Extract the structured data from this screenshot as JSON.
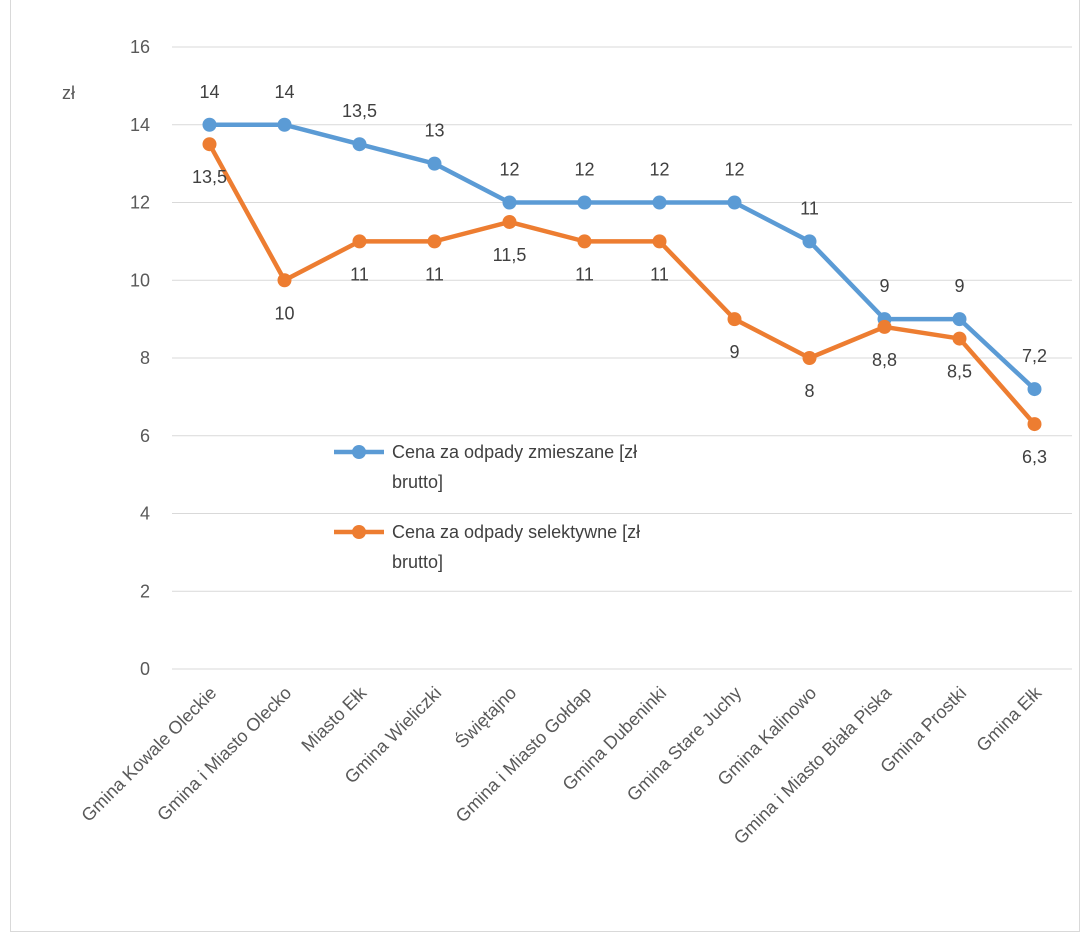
{
  "chart_data": {
    "type": "line",
    "title": "",
    "ylabel": "zł",
    "xlabel": "",
    "ylim": [
      0,
      16
    ],
    "y_ticks": [
      "0",
      "2",
      "4",
      "6",
      "8",
      "10",
      "12",
      "14",
      "16"
    ],
    "grid": true,
    "legend_position": "middle-left",
    "categories": [
      "Gmina Kowale Oleckie",
      "Gmina i Miasto Olecko",
      "Miasto Ełk",
      "Gmina Wieliczki",
      "Świętajno",
      "Gmina i Miasto Gołdap",
      "Gmina Dubeninki",
      "Gmina Stare Juchy",
      "Gmina Kalinowo",
      "Gmina i Miasto Biała Piska",
      "Gmina Prostki",
      "Gmina Ełk"
    ],
    "series": [
      {
        "name": "Cena za odpady zmieszane [zł brutto]",
        "legend_lines": [
          "Cena za odpady zmieszane [zł",
          "brutto]"
        ],
        "color": "#5b9bd5",
        "values": [
          14,
          14,
          13.5,
          13,
          12,
          12,
          12,
          12,
          11,
          9,
          9,
          7.2
        ],
        "labels": [
          "14",
          "14",
          "13,5",
          "13",
          "12",
          "12",
          "12",
          "12",
          "11",
          "9",
          "9",
          "7,2"
        ]
      },
      {
        "name": "Cena za odpady selektywne [zł brutto]",
        "legend_lines": [
          "Cena za odpady selektywne [zł",
          "brutto]"
        ],
        "color": "#ed7d31",
        "values": [
          13.5,
          10,
          11,
          11,
          11.5,
          11,
          11,
          9,
          8,
          8.8,
          8.5,
          6.3
        ],
        "labels": [
          "13,5",
          "10",
          "11",
          "11",
          "11,5",
          "11",
          "11",
          "9",
          "8",
          "8,8",
          "8,5",
          "6,3"
        ]
      }
    ]
  }
}
